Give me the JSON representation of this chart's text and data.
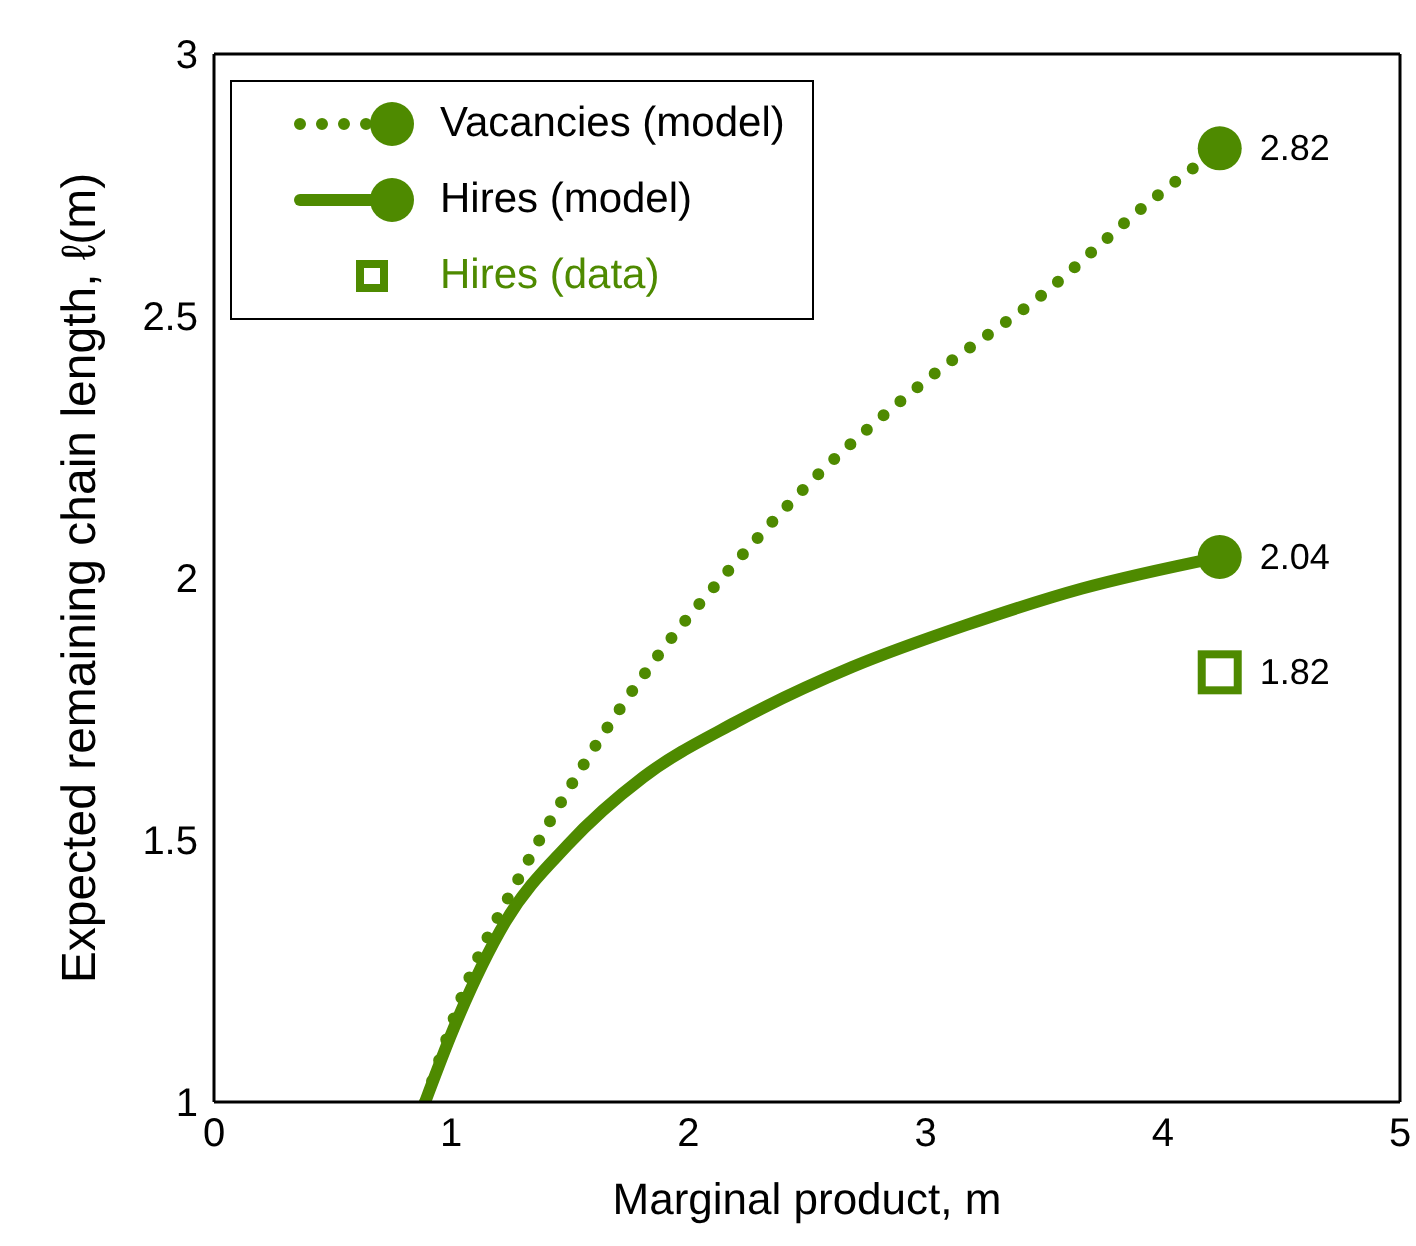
{
  "chart_data": {
    "type": "line",
    "xlabel": "Marginal product, m",
    "ylabel": "Expected remaining chain length, ℓ(m)",
    "xlim": [
      0,
      5
    ],
    "xticks": [
      0,
      1,
      2,
      3,
      4,
      5
    ],
    "ylim": [
      1,
      3
    ],
    "yticks": [
      1,
      1.5,
      2,
      2.5,
      3
    ],
    "grid": false,
    "legend": "top left",
    "series": [
      {
        "name": "Vacancies (model)",
        "color": "#4e8a00",
        "line_style": "dotted",
        "x": [
          0.89,
          1.07,
          1.3,
          1.56,
          1.88,
          2.2,
          2.53,
          3.01,
          3.49,
          3.95,
          4.24
        ],
        "values": [
          1.0,
          1.23,
          1.44,
          1.645,
          1.857,
          2.03,
          2.19,
          2.38,
          2.54,
          2.72,
          2.82
        ],
        "value_labels": [
          null,
          null,
          null,
          null,
          null,
          null,
          null,
          null,
          null,
          null,
          "2.82"
        ]
      },
      {
        "name": "Hires (model)",
        "color": "#4e8a00",
        "line_style": "solid",
        "x": [
          0.89,
          1.01,
          1.23,
          1.49,
          1.81,
          2.2,
          2.69,
          3.17,
          3.66,
          4.24
        ],
        "values": [
          1.0,
          1.14,
          1.345,
          1.49,
          1.62,
          1.725,
          1.83,
          1.91,
          1.98,
          2.04
        ],
        "value_labels": [
          null,
          null,
          null,
          null,
          null,
          null,
          null,
          null,
          null,
          "2.04"
        ]
      },
      {
        "name": "Hires (data)",
        "type": "scatter",
        "color": "#4e8a00",
        "marker": "square",
        "x": [
          4.24
        ],
        "values": [
          1.82
        ],
        "value_labels": [
          "1.82"
        ]
      }
    ]
  }
}
